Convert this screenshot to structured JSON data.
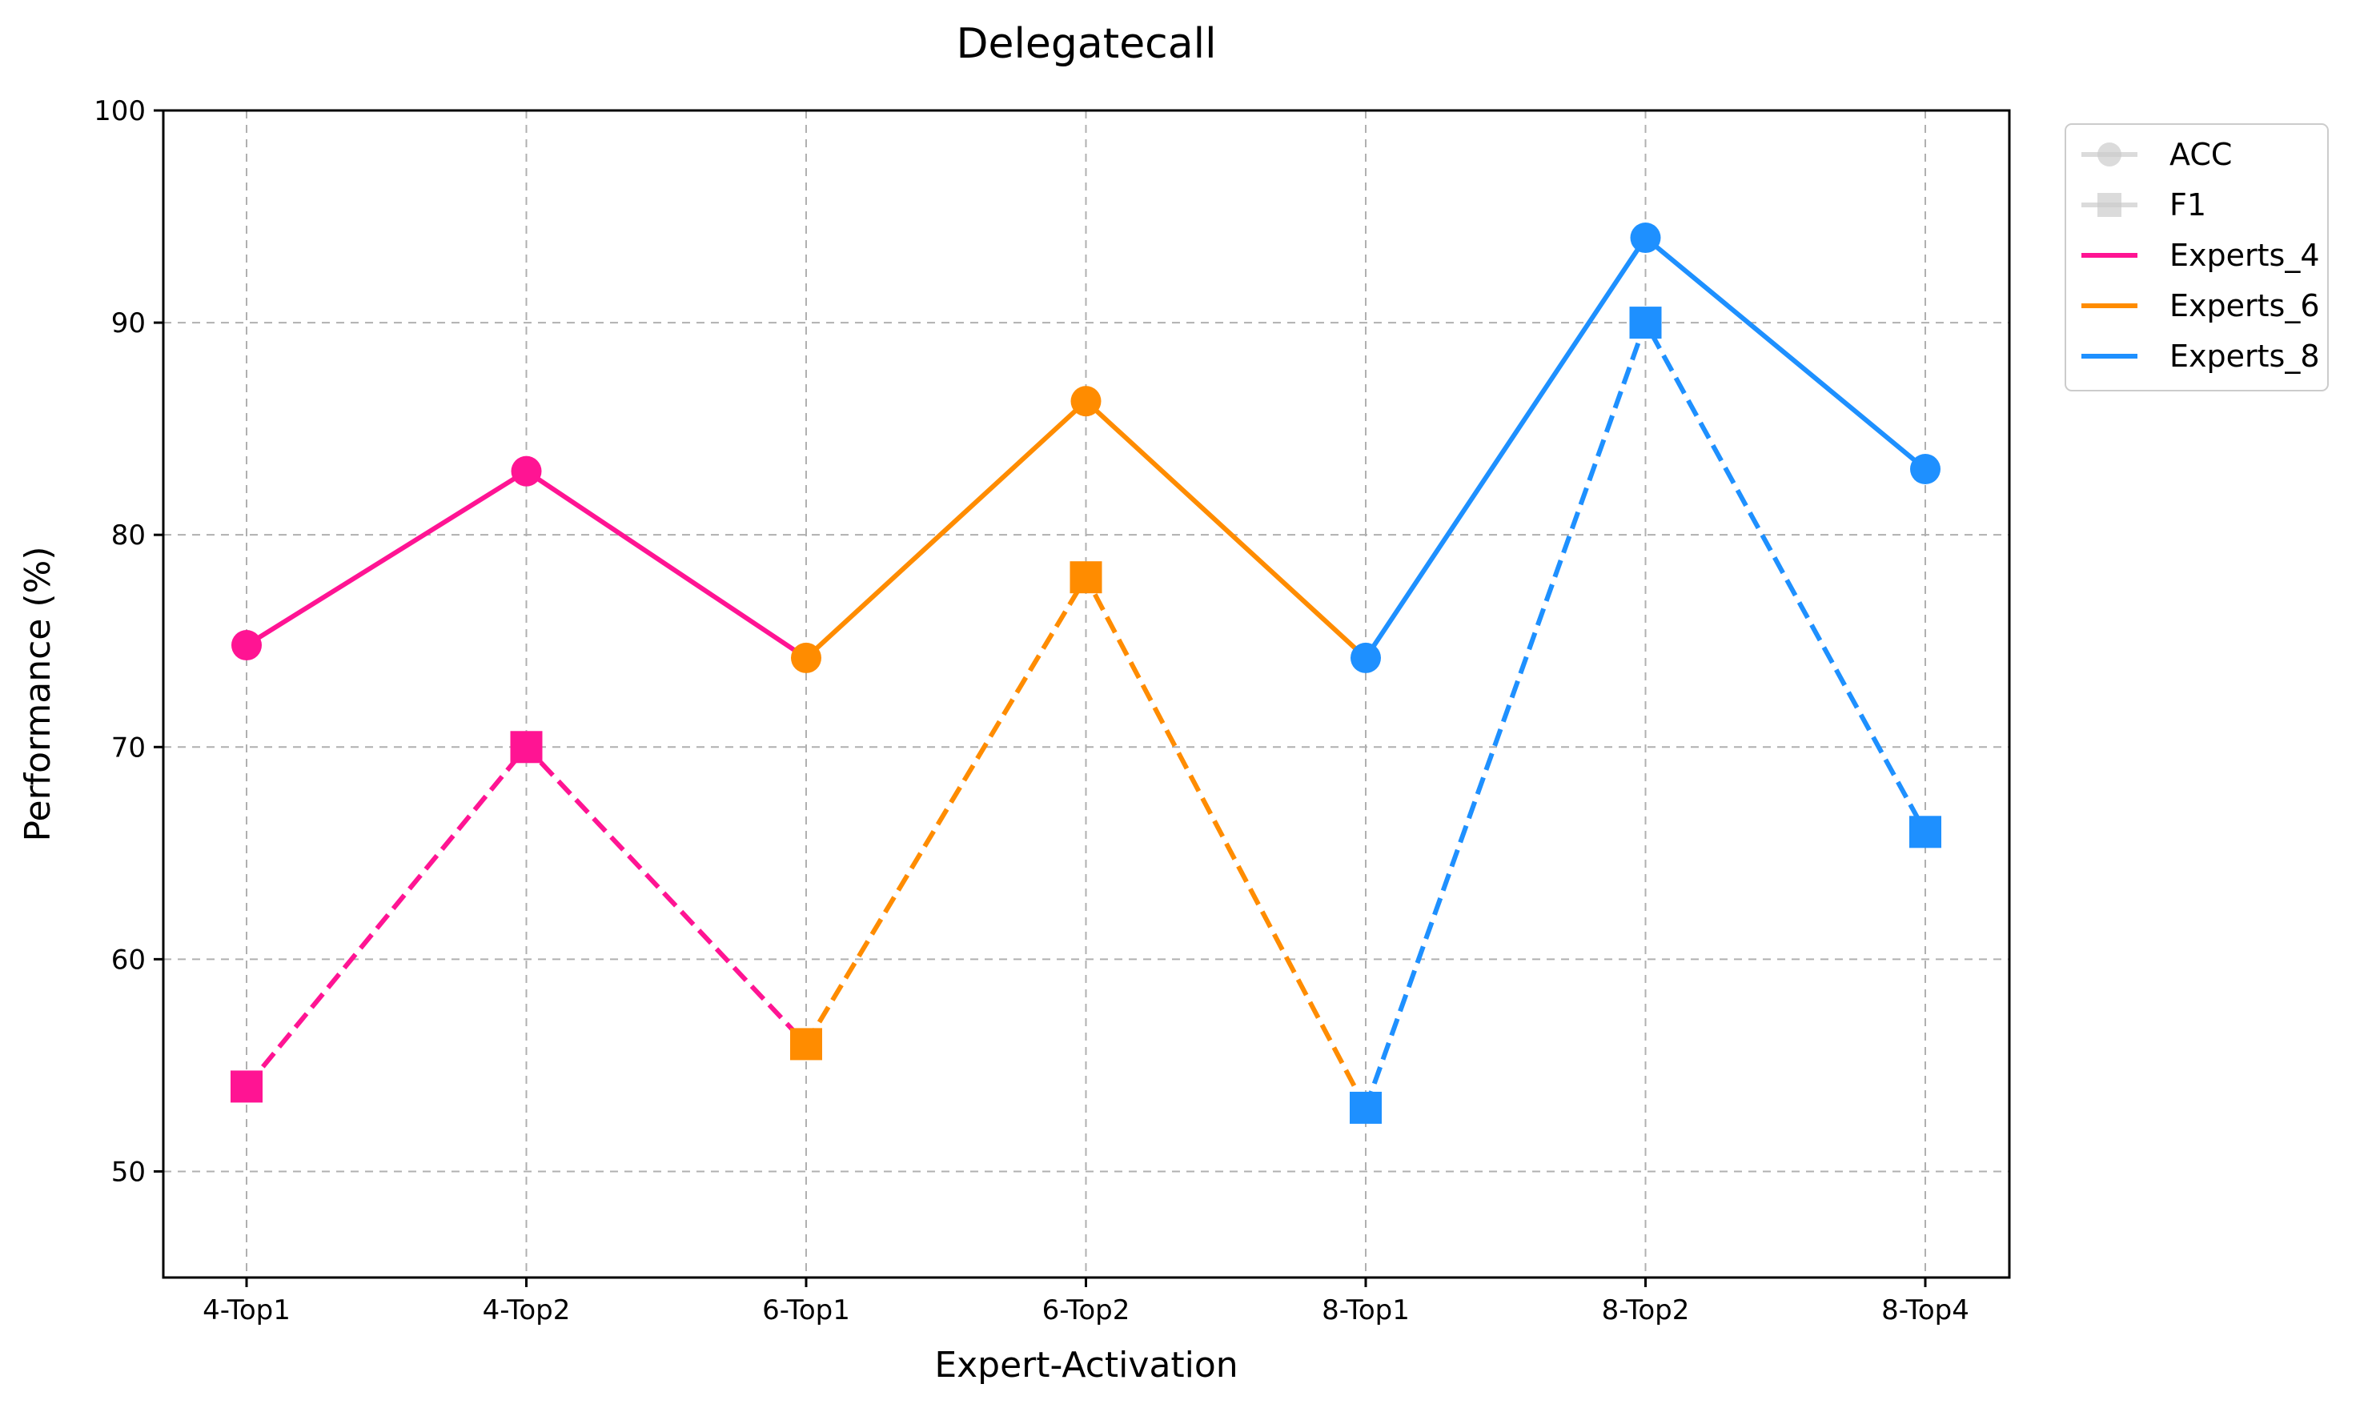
{
  "chart_data": {
    "type": "line",
    "title": "Delegatecall",
    "xlabel": "Expert-Activation",
    "ylabel": "Performance (%)",
    "categories": [
      "4-Top1",
      "4-Top2",
      "6-Top1",
      "6-Top2",
      "8-Top1",
      "8-Top2",
      "8-Top4"
    ],
    "ylim": [
      45,
      100
    ],
    "yticks": [
      50,
      60,
      70,
      80,
      90,
      100
    ],
    "grid": true,
    "legend_position": "outside-top-right",
    "legend": [
      {
        "label": "ACC",
        "kind": "marker",
        "marker": "circle"
      },
      {
        "label": "F1",
        "kind": "marker",
        "marker": "square"
      },
      {
        "label": "Experts_4",
        "kind": "line",
        "color": "#ff1493"
      },
      {
        "label": "Experts_6",
        "kind": "line",
        "color": "#ff8c00"
      },
      {
        "label": "Experts_8",
        "kind": "line",
        "color": "#1e90ff"
      }
    ],
    "series": [
      {
        "name": "Experts_4",
        "color": "#ff1493",
        "x": [
          "4-Top1",
          "4-Top2",
          "6-Top1"
        ],
        "acc": [
          74.8,
          83.0,
          74.2
        ],
        "f1": [
          54.0,
          70.0,
          56.0
        ]
      },
      {
        "name": "Experts_6",
        "color": "#ff8c00",
        "x": [
          "6-Top1",
          "6-Top2",
          "8-Top1"
        ],
        "acc": [
          74.2,
          86.3,
          74.2
        ],
        "f1": [
          56.0,
          78.0,
          53.0
        ]
      },
      {
        "name": "Experts_8",
        "color": "#1e90ff",
        "x": [
          "8-Top1",
          "8-Top2",
          "8-Top4"
        ],
        "acc": [
          74.2,
          94.0,
          83.1
        ],
        "f1": [
          53.0,
          90.0,
          66.0
        ]
      }
    ],
    "points": {
      "acc": [
        {
          "x": "4-Top1",
          "value": 74.8,
          "color": "#ff1493"
        },
        {
          "x": "4-Top2",
          "value": 83.0,
          "color": "#ff1493"
        },
        {
          "x": "6-Top1",
          "value": 74.2,
          "color": "#ff8c00"
        },
        {
          "x": "6-Top2",
          "value": 86.3,
          "color": "#ff8c00"
        },
        {
          "x": "8-Top1",
          "value": 74.2,
          "color": "#1e90ff"
        },
        {
          "x": "8-Top2",
          "value": 94.0,
          "color": "#1e90ff"
        },
        {
          "x": "8-Top4",
          "value": 83.1,
          "color": "#1e90ff"
        }
      ],
      "f1": [
        {
          "x": "4-Top1",
          "value": 54.0,
          "color": "#ff1493"
        },
        {
          "x": "4-Top2",
          "value": 70.0,
          "color": "#ff1493"
        },
        {
          "x": "6-Top1",
          "value": 56.0,
          "color": "#ff8c00"
        },
        {
          "x": "6-Top2",
          "value": 78.0,
          "color": "#ff8c00"
        },
        {
          "x": "8-Top1",
          "value": 53.0,
          "color": "#1e90ff"
        },
        {
          "x": "8-Top2",
          "value": 90.0,
          "color": "#1e90ff"
        },
        {
          "x": "8-Top4",
          "value": 66.0,
          "color": "#1e90ff"
        }
      ]
    }
  }
}
